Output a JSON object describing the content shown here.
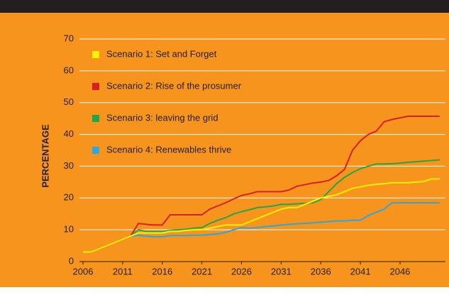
{
  "chart_data": {
    "type": "line",
    "y_label": "PERCENTAGE",
    "x": [
      2006,
      2007,
      2008,
      2009,
      2010,
      2011,
      2012,
      2013,
      2014,
      2015,
      2016,
      2017,
      2018,
      2019,
      2020,
      2021,
      2022,
      2023,
      2024,
      2025,
      2026,
      2027,
      2028,
      2029,
      2030,
      2031,
      2032,
      2033,
      2034,
      2035,
      2036,
      2037,
      2038,
      2039,
      2040,
      2041,
      2042,
      2043,
      2044,
      2045,
      2046,
      2047,
      2048,
      2049,
      2050,
      2051
    ],
    "series": [
      {
        "name": "Scenario 1: Set and Forget",
        "color": "#fff200",
        "values": [
          3,
          3,
          4,
          5,
          6,
          7,
          8,
          9,
          9,
          9,
          9,
          9.5,
          9.5,
          9.8,
          10,
          10,
          10.5,
          11,
          11.5,
          11.5,
          11.5,
          12.5,
          13.5,
          14.5,
          15.5,
          16.5,
          17,
          17,
          18,
          19,
          20,
          20.5,
          21,
          22,
          23,
          23.5,
          24,
          24.3,
          24.5,
          24.8,
          24.8,
          24.8,
          25,
          25.2,
          26,
          26
        ]
      },
      {
        "name": "Scenario 2: Rise of the prosumer",
        "color": "#d71f26",
        "values": [
          3,
          3,
          4,
          5,
          6,
          7,
          8,
          12,
          11.7,
          11.5,
          11.5,
          14.7,
          14.7,
          14.7,
          14.7,
          14.7,
          16.5,
          17.5,
          18.5,
          19.7,
          20.8,
          21.3,
          22,
          22,
          22,
          22,
          22.5,
          23.7,
          24.2,
          24.7,
          25,
          25.5,
          27,
          29,
          35,
          38,
          40,
          41,
          44,
          44.7,
          45.2,
          45.7,
          45.7,
          45.7,
          45.7,
          45.7
        ]
      },
      {
        "name": "Scenario 3: leaving the grid",
        "color": "#1fa84a",
        "values": [
          3,
          3,
          4,
          5,
          6,
          7,
          8,
          10,
          9.5,
          9.5,
          9.5,
          9.8,
          10,
          10.2,
          10.5,
          10.7,
          12,
          13,
          13.8,
          15,
          15.7,
          16.3,
          17,
          17.2,
          17.5,
          18,
          18,
          18.2,
          18.3,
          18.5,
          19.5,
          22,
          24.5,
          26.5,
          28,
          29.2,
          30,
          30.7,
          30.7,
          30.8,
          31,
          31.2,
          31.4,
          31.6,
          31.8,
          32
        ]
      },
      {
        "name": "Scenario 4: Renewables thrive",
        "color": "#29a9e0",
        "values": [
          3,
          3,
          4,
          5,
          6,
          7,
          8,
          8.3,
          8,
          7.8,
          7.8,
          8.2,
          8.2,
          8.2,
          8.3,
          8.3,
          8.5,
          8.7,
          9.2,
          10,
          10.7,
          10.5,
          10.7,
          11,
          11.2,
          11.5,
          11.7,
          11.9,
          12,
          12.2,
          12.4,
          12.6,
          12.8,
          12.8,
          13,
          13,
          14.5,
          15.5,
          16.5,
          18.5,
          18.5,
          18.5,
          18.5,
          18.5,
          18.5,
          18.5
        ]
      }
    ],
    "xlim": [
      2006,
      2052
    ],
    "xticks": [
      2006,
      2011,
      2016,
      2021,
      2026,
      2031,
      2036,
      2041,
      2046
    ],
    "ylim": [
      0,
      70
    ],
    "yticks": [
      0,
      10,
      20,
      30,
      40,
      50,
      60,
      70
    ],
    "grid": true,
    "legend": "top-left",
    "background": "#f7941d"
  }
}
